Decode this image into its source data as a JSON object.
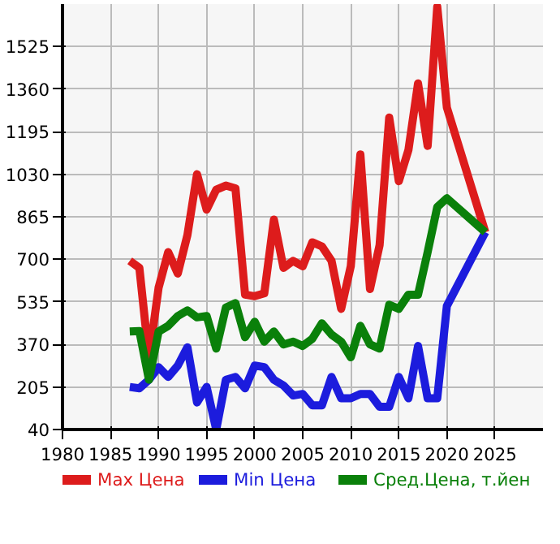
{
  "chart_data": {
    "type": "line",
    "x": [
      1987,
      1988,
      1989,
      1990,
      1991,
      1992,
      1993,
      1994,
      1995,
      1996,
      1997,
      1998,
      1999,
      2000,
      2001,
      2002,
      2003,
      2004,
      2005,
      2006,
      2007,
      2008,
      2009,
      2010,
      2011,
      2012,
      2013,
      2014,
      2015,
      2016,
      2017,
      2018,
      2019,
      2020,
      2024
    ],
    "series": [
      {
        "name": "Max Цена",
        "color": "#dd1c1c",
        "values": [
          694,
          667,
          315,
          590,
          728,
          645,
          794,
          1030,
          893,
          970,
          986,
          975,
          563,
          557,
          568,
          854,
          667,
          694,
          673,
          766,
          750,
          694,
          508,
          673,
          1107,
          585,
          755,
          1250,
          1003,
          1124,
          1382,
          1140,
          1680,
          1289,
          805
        ]
      },
      {
        "name": "Min Цена",
        "color": "#1c1cdd",
        "values": [
          205,
          200,
          233,
          282,
          244,
          288,
          359,
          145,
          205,
          40,
          233,
          244,
          200,
          288,
          282,
          233,
          211,
          172,
          178,
          134,
          134,
          244,
          161,
          161,
          178,
          178,
          128,
          128,
          244,
          161,
          364,
          161,
          161,
          519,
          805
        ]
      },
      {
        "name": "Сред.Цена, т.йен",
        "color": "#0a800a",
        "values": [
          420,
          422,
          233,
          420,
          442,
          480,
          502,
          475,
          480,
          354,
          513,
          530,
          398,
          458,
          381,
          420,
          370,
          381,
          364,
          392,
          452,
          408,
          381,
          320,
          442,
          370,
          354,
          524,
          508,
          563,
          563,
          728,
          903,
          937,
          805
        ]
      }
    ],
    "xlim": [
      1980,
      2030
    ],
    "ylim": [
      40,
      1690
    ],
    "xticks": [
      1980,
      1985,
      1990,
      1995,
      2000,
      2005,
      2010,
      2015,
      2020,
      2025
    ],
    "yticks": [
      40,
      205,
      370,
      535,
      700,
      865,
      1030,
      1195,
      1360,
      1525
    ],
    "grid": true,
    "legend": "bottom",
    "line_style": "solid",
    "marker": "none"
  }
}
